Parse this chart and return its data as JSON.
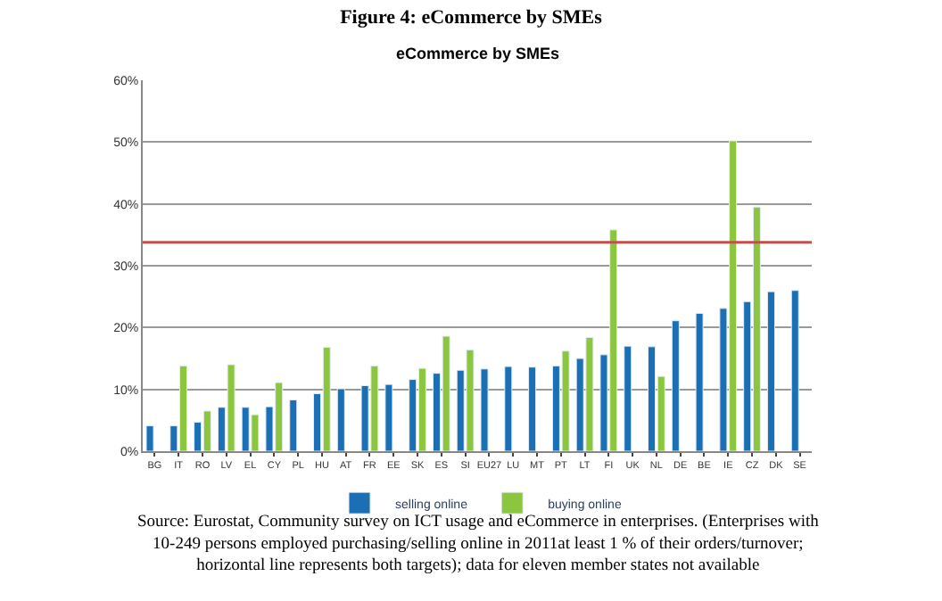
{
  "chart_data": {
    "type": "bar",
    "title": "Figure 4: eCommerce by SMEs",
    "subtitle": "eCommerce by SMEs",
    "categories": [
      "BG",
      "IT",
      "RO",
      "LV",
      "EL",
      "CY",
      "PL",
      "HU",
      "AT",
      "FR",
      "EE",
      "SK",
      "ES",
      "SI",
      "EU27",
      "LU",
      "MT",
      "PT",
      "LT",
      "FI",
      "UK",
      "NL",
      "DE",
      "BE",
      "IE",
      "CZ",
      "DK",
      "SE"
    ],
    "series": [
      {
        "name": "selling online",
        "color": "#1a6fb5",
        "values": [
          4.1,
          4.1,
          4.7,
          7.1,
          7.1,
          7.2,
          8.3,
          9.3,
          10.1,
          10.6,
          10.8,
          11.6,
          12.6,
          13.1,
          13.3,
          13.7,
          13.6,
          13.8,
          15.0,
          15.6,
          17.0,
          16.9,
          21.1,
          22.3,
          23.1,
          24.2,
          25.8,
          26.0
        ]
      },
      {
        "name": "buying online",
        "color": "#8cc63f",
        "values": [
          null,
          13.8,
          6.5,
          14.0,
          5.9,
          11.1,
          null,
          16.8,
          null,
          13.8,
          null,
          13.4,
          18.6,
          16.4,
          null,
          null,
          null,
          16.2,
          18.4,
          35.8,
          null,
          12.1,
          null,
          null,
          50.2,
          39.5,
          null,
          null
        ]
      }
    ],
    "ylim": [
      0,
      60
    ],
    "yticks": [
      {
        "value": 0,
        "label": "0%"
      },
      {
        "value": 10,
        "label": "10%"
      },
      {
        "value": 20,
        "label": "20%"
      },
      {
        "value": 30,
        "label": "30%"
      },
      {
        "value": 40,
        "label": "40%"
      },
      {
        "value": 50,
        "label": "50%"
      },
      {
        "value": 60,
        "label": "60%"
      }
    ],
    "grid": "y",
    "legend": "bottom",
    "ref_lines": [
      {
        "axis": "y",
        "value": 33.8,
        "color": "#c0504d"
      }
    ],
    "annotations": [
      "Source: Eurostat, Community survey on ICT usage and eCommerce in enterprises. (Enterprises with 10-249 persons employed purchasing/selling online in 2011at least 1 % of their orders/turnover; horizontal line represents both targets); data for eleven member states not available"
    ]
  }
}
